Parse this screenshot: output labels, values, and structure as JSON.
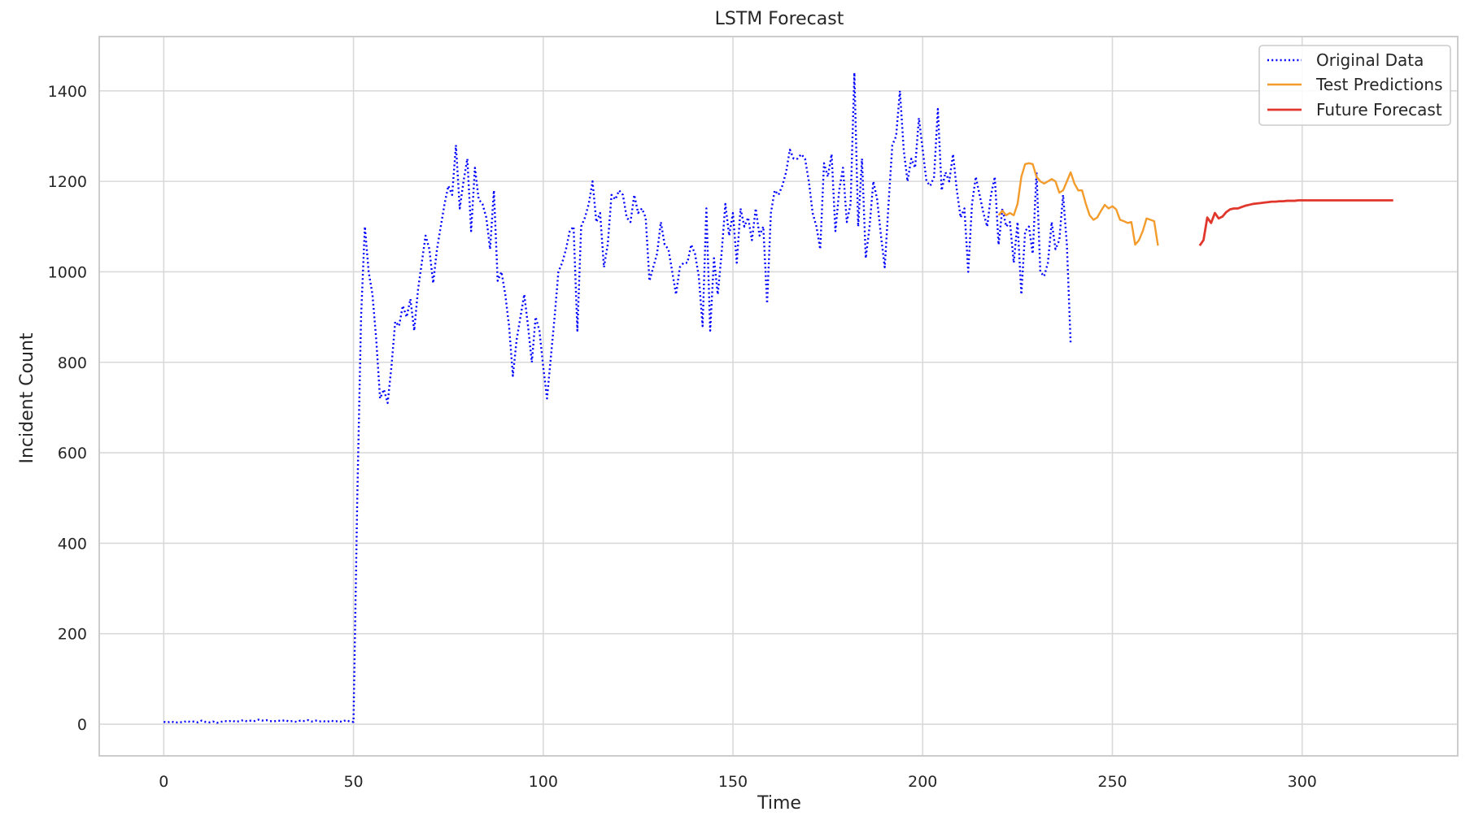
{
  "chart_data": {
    "type": "line",
    "title": "LSTM Forecast",
    "xlabel": "Time",
    "ylabel": "Incident Count",
    "xlim": [
      -17,
      341
    ],
    "ylim": [
      -70,
      1520
    ],
    "xticks": [
      0,
      50,
      100,
      150,
      200,
      250,
      300
    ],
    "yticks": [
      0,
      200,
      400,
      600,
      800,
      1000,
      1200,
      1400
    ],
    "grid": true,
    "legend_position": "top-right",
    "series": [
      {
        "name": "Original Data",
        "color": "#0000ff",
        "style": "dotted",
        "x_start": 0,
        "values": [
          5,
          4,
          6,
          3,
          5,
          4,
          7,
          5,
          6,
          4,
          8,
          5,
          4,
          6,
          3,
          5,
          7,
          6,
          8,
          5,
          7,
          9,
          6,
          8,
          7,
          10,
          8,
          9,
          7,
          6,
          8,
          7,
          9,
          6,
          7,
          5,
          8,
          7,
          9,
          6,
          8,
          6,
          7,
          5,
          8,
          6,
          7,
          5,
          9,
          6,
          5,
          500,
          900,
          1100,
          1000,
          950,
          850,
          720,
          740,
          710,
          790,
          890,
          880,
          925,
          900,
          940,
          870,
          960,
          1020,
          1080,
          1050,
          975,
          1050,
          1100,
          1150,
          1190,
          1170,
          1280,
          1140,
          1200,
          1250,
          1090,
          1230,
          1160,
          1150,
          1120,
          1050,
          1180,
          980,
          1000,
          950,
          880,
          770,
          850,
          900,
          950,
          880,
          800,
          900,
          870,
          790,
          720,
          810,
          900,
          1000,
          1020,
          1050,
          1090,
          1100,
          870,
          1100,
          1120,
          1150,
          1200,
          1110,
          1130,
          1010,
          1060,
          1170,
          1160,
          1180,
          1170,
          1120,
          1110,
          1170,
          1130,
          1140,
          1120,
          980,
          1010,
          1040,
          1110,
          1060,
          1050,
          1000,
          950,
          1010,
          1020,
          1020,
          1060,
          1040,
          990,
          880,
          1140,
          870,
          1030,
          950,
          1040,
          1150,
          1080,
          1130,
          1020,
          1140,
          1100,
          1120,
          1070,
          1140,
          1080,
          1100,
          930,
          1130,
          1180,
          1170,
          1190,
          1220,
          1270,
          1250,
          1250,
          1260,
          1250,
          1200,
          1130,
          1100,
          1050,
          1240,
          1210,
          1260,
          1090,
          1180,
          1230,
          1110,
          1150,
          1440,
          1100,
          1250,
          1030,
          1100,
          1200,
          1160,
          1080,
          1010,
          1150,
          1280,
          1300,
          1400,
          1270,
          1200,
          1250,
          1230,
          1340,
          1270,
          1200,
          1190,
          1210,
          1360,
          1180,
          1220,
          1200,
          1260,
          1180,
          1120,
          1140,
          1000,
          1150,
          1210,
          1170,
          1130,
          1100,
          1170,
          1210,
          1060,
          1140,
          1100,
          1110,
          1020,
          1110,
          950,
          1090,
          1100,
          1040,
          1220,
          1000,
          990,
          1020,
          1110,
          1050,
          1070,
          1170,
          1060,
          840
        ]
      },
      {
        "name": "Test Predictions",
        "color": "#f39c2c",
        "style": "solid",
        "x_start": 220,
        "values": [
          1125,
          1135,
          1125,
          1130,
          1125,
          1150,
          1210,
          1238,
          1240,
          1238,
          1210,
          1200,
          1195,
          1200,
          1205,
          1200,
          1175,
          1180,
          1200,
          1220,
          1195,
          1180,
          1180,
          1150,
          1125,
          1115,
          1120,
          1135,
          1148,
          1140,
          1145,
          1138,
          1115,
          1112,
          1108,
          1110,
          1060,
          1070,
          1090,
          1118,
          1115,
          1112,
          1058
        ]
      },
      {
        "name": "Future Forecast",
        "color": "#e0362b",
        "style": "solid",
        "x_start": 273,
        "values": [
          1058,
          1070,
          1120,
          1108,
          1130,
          1118,
          1122,
          1132,
          1138,
          1140,
          1140,
          1143,
          1146,
          1148,
          1150,
          1151,
          1152,
          1153,
          1154,
          1155,
          1155,
          1156,
          1156,
          1157,
          1157,
          1157,
          1158,
          1158,
          1158,
          1158,
          1158,
          1158,
          1158,
          1158,
          1158,
          1158,
          1158,
          1158,
          1158,
          1158,
          1158,
          1158,
          1158,
          1158,
          1158,
          1158,
          1158,
          1158,
          1158,
          1158,
          1158,
          1158
        ]
      }
    ]
  }
}
